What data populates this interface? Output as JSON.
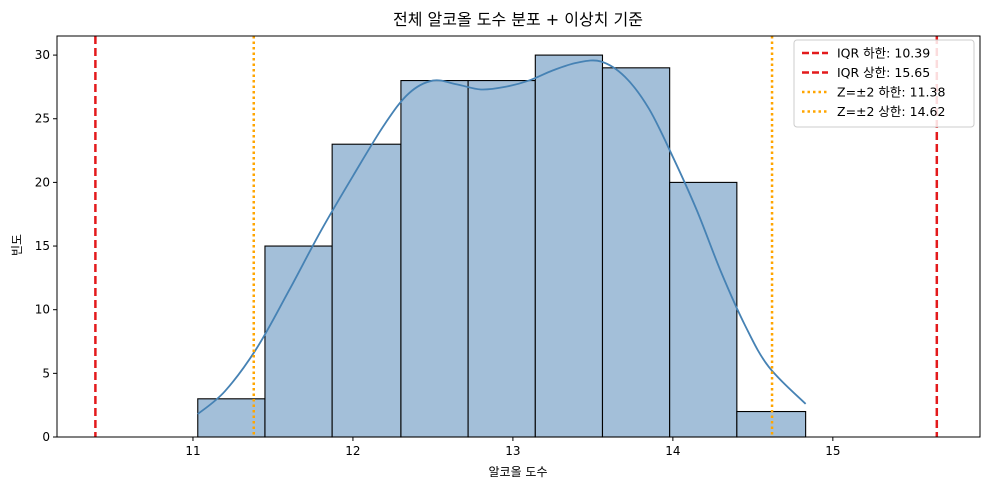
{
  "chart_data": {
    "type": "bar",
    "title": "전체 알코올 도수 분포 + 이상치 기준",
    "xlabel": "알코올 도수",
    "ylabel": "빈도",
    "xlim": [
      10.15,
      15.92
    ],
    "ylim": [
      0,
      31.5
    ],
    "x_ticks": [
      11,
      12,
      13,
      14,
      15
    ],
    "y_ticks": [
      0,
      5,
      10,
      15,
      20,
      25,
      30
    ],
    "bins": [
      {
        "x0": 11.03,
        "x1": 11.45,
        "count": 3
      },
      {
        "x0": 11.45,
        "x1": 11.87,
        "count": 15
      },
      {
        "x0": 11.87,
        "x1": 12.3,
        "count": 23
      },
      {
        "x0": 12.3,
        "x1": 12.72,
        "count": 28
      },
      {
        "x0": 12.72,
        "x1": 13.14,
        "count": 28
      },
      {
        "x0": 13.14,
        "x1": 13.56,
        "count": 30
      },
      {
        "x0": 13.56,
        "x1": 13.98,
        "count": 29
      },
      {
        "x0": 13.98,
        "x1": 14.4,
        "count": 20
      },
      {
        "x0": 14.4,
        "x1": 14.83,
        "count": 2
      }
    ],
    "kde": {
      "x": [
        11.03,
        11.2,
        11.4,
        11.6,
        11.8,
        12.0,
        12.2,
        12.35,
        12.5,
        12.65,
        12.8,
        12.95,
        13.1,
        13.25,
        13.4,
        13.55,
        13.7,
        13.85,
        14.0,
        14.15,
        14.3,
        14.45,
        14.6,
        14.83
      ],
      "y": [
        1.8,
        3.6,
        7.0,
        11.5,
        16.2,
        20.5,
        24.6,
        27.0,
        28.0,
        27.7,
        27.3,
        27.5,
        28.0,
        28.8,
        29.4,
        29.5,
        28.3,
        25.8,
        22.0,
        17.8,
        13.0,
        8.8,
        5.5,
        2.6
      ]
    },
    "reference_lines": [
      {
        "label": "IQR 하한: 10.39",
        "value": 10.39,
        "color": "#e31a1c",
        "style": "dashed"
      },
      {
        "label": "IQR 상한: 15.65",
        "value": 15.65,
        "color": "#e31a1c",
        "style": "dashed"
      },
      {
        "label": "Z=±2 하한: 11.38",
        "value": 11.38,
        "color": "#ffa500",
        "style": "dotted"
      },
      {
        "label": "Z=±2 상한: 14.62",
        "value": 14.62,
        "color": "#ffa500",
        "style": "dotted"
      }
    ],
    "legend_position": "top-right",
    "grid": false,
    "colors": {
      "bar_fill": "#a3bfd9",
      "bar_edge": "#000000",
      "kde_line": "#4682b4"
    }
  }
}
